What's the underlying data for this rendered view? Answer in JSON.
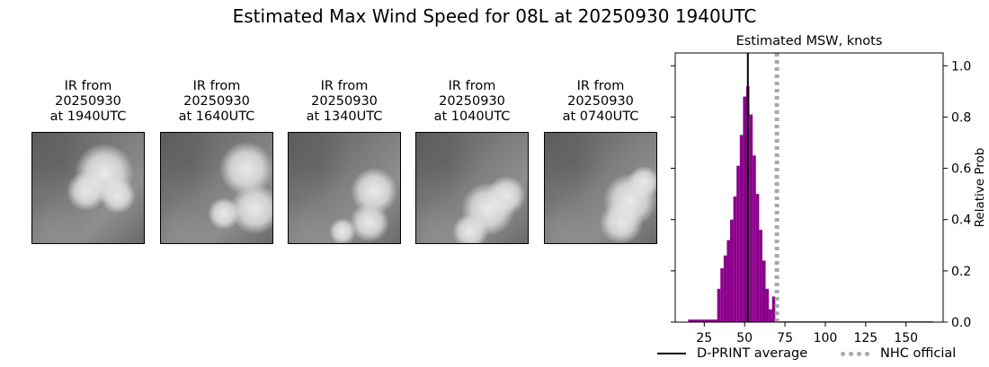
{
  "title": "Estimated Max Wind Speed for 08L at 20250930 1940UTC",
  "ir_panels": [
    {
      "lines": [
        "IR from",
        "20250930",
        "at 1940UTC"
      ],
      "thumbnail": "infrared-satellite-image"
    },
    {
      "lines": [
        "IR from",
        "20250930",
        "at 1640UTC"
      ],
      "thumbnail": "infrared-satellite-image"
    },
    {
      "lines": [
        "IR from",
        "20250930",
        "at 1340UTC"
      ],
      "thumbnail": "infrared-satellite-image"
    },
    {
      "lines": [
        "IR from",
        "20250930",
        "at 1040UTC"
      ],
      "thumbnail": "infrared-satellite-image"
    },
    {
      "lines": [
        "IR from",
        "20250930",
        "at 0740UTC"
      ],
      "thumbnail": "infrared-satellite-image"
    }
  ],
  "chart_data": {
    "type": "bar",
    "title": "Estimated MSW, knots",
    "xlabel": "",
    "ylabel": "Relative Prob",
    "xlim": [
      7,
      173
    ],
    "ylim": [
      0,
      1.05
    ],
    "xticks": [
      25,
      50,
      75,
      100,
      125,
      150
    ],
    "yticks": [
      0.0,
      0.2,
      0.4,
      0.6,
      0.8,
      1.0
    ],
    "ytick_labels": [
      "0.0",
      "0.2",
      "0.4",
      "0.6",
      "0.8",
      "1.0"
    ],
    "bin_width": 2,
    "bins": [
      {
        "x0": 15,
        "value": 0.01
      },
      {
        "x0": 17,
        "value": 0.01
      },
      {
        "x0": 19,
        "value": 0.01
      },
      {
        "x0": 21,
        "value": 0.01
      },
      {
        "x0": 23,
        "value": 0.01
      },
      {
        "x0": 25,
        "value": 0.01
      },
      {
        "x0": 27,
        "value": 0.01
      },
      {
        "x0": 29,
        "value": 0.01
      },
      {
        "x0": 31,
        "value": 0.01
      },
      {
        "x0": 33,
        "value": 0.13
      },
      {
        "x0": 35,
        "value": 0.21
      },
      {
        "x0": 37,
        "value": 0.26
      },
      {
        "x0": 39,
        "value": 0.32
      },
      {
        "x0": 41,
        "value": 0.4
      },
      {
        "x0": 43,
        "value": 0.49
      },
      {
        "x0": 45,
        "value": 0.61
      },
      {
        "x0": 47,
        "value": 0.73
      },
      {
        "x0": 49,
        "value": 0.88
      },
      {
        "x0": 51,
        "value": 0.92
      },
      {
        "x0": 53,
        "value": 0.81
      },
      {
        "x0": 55,
        "value": 0.65
      },
      {
        "x0": 57,
        "value": 0.5
      },
      {
        "x0": 59,
        "value": 0.36
      },
      {
        "x0": 61,
        "value": 0.24
      },
      {
        "x0": 63,
        "value": 0.13
      },
      {
        "x0": 65,
        "value": 0.05
      },
      {
        "x0": 67,
        "value": 0.1
      },
      {
        "x0": 69,
        "value": 0.005
      },
      {
        "x0": 71,
        "value": 0.003
      }
    ],
    "tail": {
      "from": 73,
      "to": 167,
      "value": 0.003
    },
    "bar_color": "#8b008b",
    "series": [
      {
        "name": "D-PRINT average",
        "x": 52,
        "color": "#000000",
        "style": "solid"
      },
      {
        "name": "NHC official",
        "x": 70,
        "color": "#a9a9a9",
        "style": "dotted"
      }
    ],
    "legend_position": "lower-right"
  }
}
